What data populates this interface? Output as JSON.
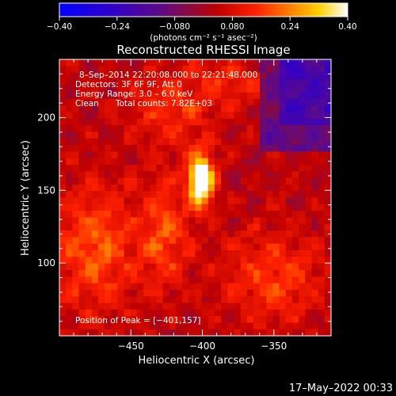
{
  "chart_data": {
    "type": "heatmap",
    "title": "Reconstructed RHESSI Image",
    "xlabel": "Heliocentric X (arcsec)",
    "ylabel": "Heliocentric Y (arcsec)",
    "xlim": [
      -500,
      -310
    ],
    "ylim": [
      50,
      240
    ],
    "x_ticks": [
      -450,
      -400,
      -350
    ],
    "y_ticks": [
      100,
      150,
      200
    ],
    "x_tick_labels": [
      "−450",
      "−400",
      "−350"
    ],
    "y_tick_labels": [
      "100",
      "150",
      "200"
    ],
    "colorbar": {
      "min": -0.4,
      "max": 0.4,
      "tick_values": [
        -0.4,
        -0.24,
        -0.08,
        0.08,
        0.24,
        0.4
      ],
      "tick_labels": [
        "−0.40",
        "−0.24",
        "−0.080",
        "0.080",
        "0.24",
        "0.40"
      ],
      "units_text": "(photons cm⁻² s⁻¹ asec⁻²)",
      "colormap": "rainbow-like blue-purple-red-yellow-white"
    },
    "peak": {
      "x": -401,
      "y": 157,
      "value": 0.4
    },
    "annotations": {
      "line1": "8–Sep–2014 22:20:08.000 to 22:21:48.000",
      "line2": "Detectors: 3F 6F 9F, Att 0",
      "line3": "Energy Range: 3.0 – 6.0 keV",
      "line4_label": "Clean",
      "line4_counts": "Total counts: 7.82E+03",
      "peak_text": "Position of Peak = [−401,157]"
    },
    "grid": false,
    "legend": "none"
  },
  "footer": {
    "timestamp": "17–May–2022 00:33"
  }
}
